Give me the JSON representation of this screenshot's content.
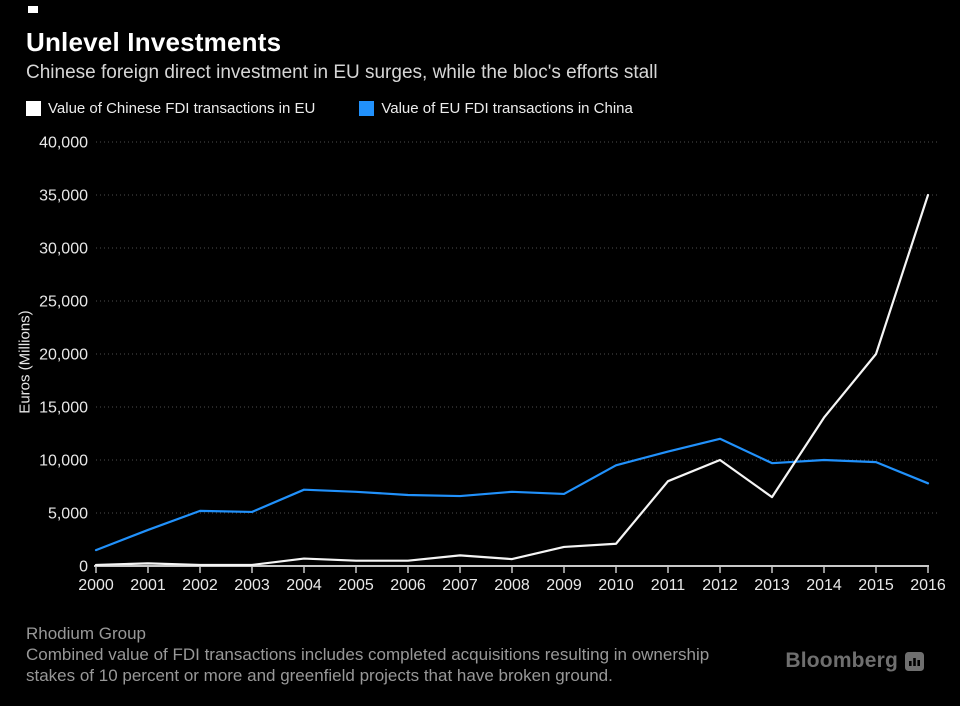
{
  "header": {
    "title": "Unlevel Investments",
    "subtitle": "Chinese foreign direct investment in EU surges, while the bloc's efforts stall"
  },
  "legend": [
    {
      "label": "Value of Chinese FDI transactions in EU",
      "color": "#ffffff"
    },
    {
      "label": "Value of EU FDI transactions in China",
      "color": "#2191fb"
    }
  ],
  "chart_data": {
    "type": "line",
    "x": [
      2000,
      2001,
      2002,
      2003,
      2004,
      2005,
      2006,
      2007,
      2008,
      2009,
      2010,
      2011,
      2012,
      2013,
      2014,
      2015,
      2016
    ],
    "series": [
      {
        "name": "Value of Chinese FDI transactions in EU",
        "color": "#f5f5f5",
        "values": [
          100,
          250,
          100,
          100,
          700,
          500,
          500,
          1000,
          650,
          1800,
          2100,
          8000,
          10000,
          6500,
          14000,
          20000,
          35000
        ]
      },
      {
        "name": "Value of EU FDI transactions in China",
        "color": "#2191fb",
        "values": [
          1500,
          3400,
          5200,
          5100,
          7200,
          7000,
          6700,
          6600,
          7000,
          6800,
          9500,
          10800,
          12000,
          9700,
          10000,
          9800,
          7800
        ]
      }
    ],
    "title": "Unlevel Investments",
    "xlabel": "",
    "ylabel": "Euros (Millions)",
    "ylim": [
      0,
      40000
    ],
    "yticks": [
      0,
      5000,
      10000,
      15000,
      20000,
      25000,
      30000,
      35000,
      40000
    ],
    "ytick_labels": [
      "0",
      "5,000",
      "10,000",
      "15,000",
      "20,000",
      "25,000",
      "30,000",
      "35,000",
      "40,000"
    ],
    "grid": "horizontal-dotted",
    "legend_position": "top-left"
  },
  "footer": {
    "source": "Rhodium Group",
    "note_line1": "Combined value of FDI transactions includes completed acquisitions resulting in ownership",
    "note_line2": "stakes of 10 percent or more and greenfield projects that have broken ground.",
    "brand": "Bloomberg"
  },
  "colors": {
    "background": "#000000",
    "title": "#ffffff",
    "subtitle": "#d6d6d6",
    "axis": "#c8c8c8",
    "tick_label": "#e8e8e8",
    "gridline": "#3f3f3f",
    "footer_text": "#989898",
    "brand_text": "#6f6f6f",
    "series_white": "#f5f5f5",
    "series_blue": "#2191fb"
  }
}
